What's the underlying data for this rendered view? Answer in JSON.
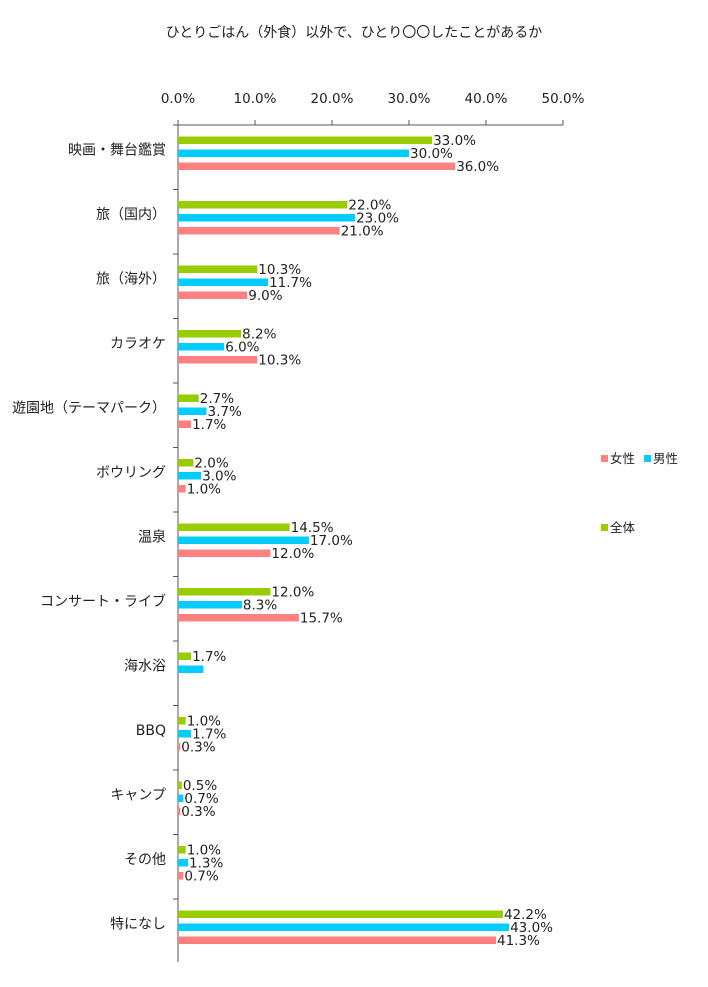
{
  "chart_data": {
    "type": "bar",
    "orientation": "horizontal",
    "title": "ひとりごはん（外食）以外で、ひとり〇〇したことがあるか",
    "xlim": [
      0,
      50
    ],
    "xticks": [
      "0.0%",
      "10.0%",
      "20.0%",
      "30.0%",
      "40.0%",
      "50.0%"
    ],
    "tick_values": [
      0,
      10,
      20,
      30,
      40,
      50
    ],
    "grid": false,
    "legend_position": "right",
    "categories": [
      "映画・舞台鑑賞",
      "旅（国内）",
      "旅（海外）",
      "カラオケ",
      "遊園地（テーマパーク）",
      "ボウリング",
      "温泉",
      "コンサート・ライブ",
      "海水浴",
      "BBQ",
      "キャンプ",
      "その他",
      "特になし"
    ],
    "series": [
      {
        "name": "全体",
        "color": "#99cc00",
        "values": [
          33.0,
          22.0,
          10.3,
          8.2,
          2.7,
          2.0,
          14.5,
          12.0,
          1.7,
          1.0,
          0.5,
          1.0,
          42.2
        ],
        "labels": [
          "33.0%",
          "22.0%",
          "10.3%",
          "8.2%",
          "2.7%",
          "2.0%",
          "14.5%",
          "12.0%",
          "1.7%",
          "1.0%",
          "0.5%",
          "1.0%",
          "42.2%"
        ]
      },
      {
        "name": "男性",
        "color": "#00ccff",
        "values": [
          30.0,
          23.0,
          11.7,
          6.0,
          3.7,
          3.0,
          17.0,
          8.3,
          3.3,
          1.7,
          0.7,
          1.3,
          43.0
        ],
        "labels": [
          "30.0%",
          "23.0%",
          "11.7%",
          "6.0%",
          "3.7%",
          "3.0%",
          "17.0%",
          "8.3%",
          "",
          "1.7%",
          "0.7%",
          "1.3%",
          "43.0%"
        ]
      },
      {
        "name": "女性",
        "color": "#ff8080",
        "values": [
          36.0,
          21.0,
          9.0,
          10.3,
          1.7,
          1.0,
          12.0,
          15.7,
          0,
          0.3,
          0.3,
          0.7,
          41.3
        ],
        "labels": [
          "36.0%",
          "21.0%",
          "9.0%",
          "10.3%",
          "1.7%",
          "1.0%",
          "12.0%",
          "15.7%",
          "",
          "0.3%",
          "0.3%",
          "0.7%",
          "41.3%"
        ]
      }
    ],
    "legend_order": [
      "女性",
      "男性",
      "全体"
    ]
  }
}
